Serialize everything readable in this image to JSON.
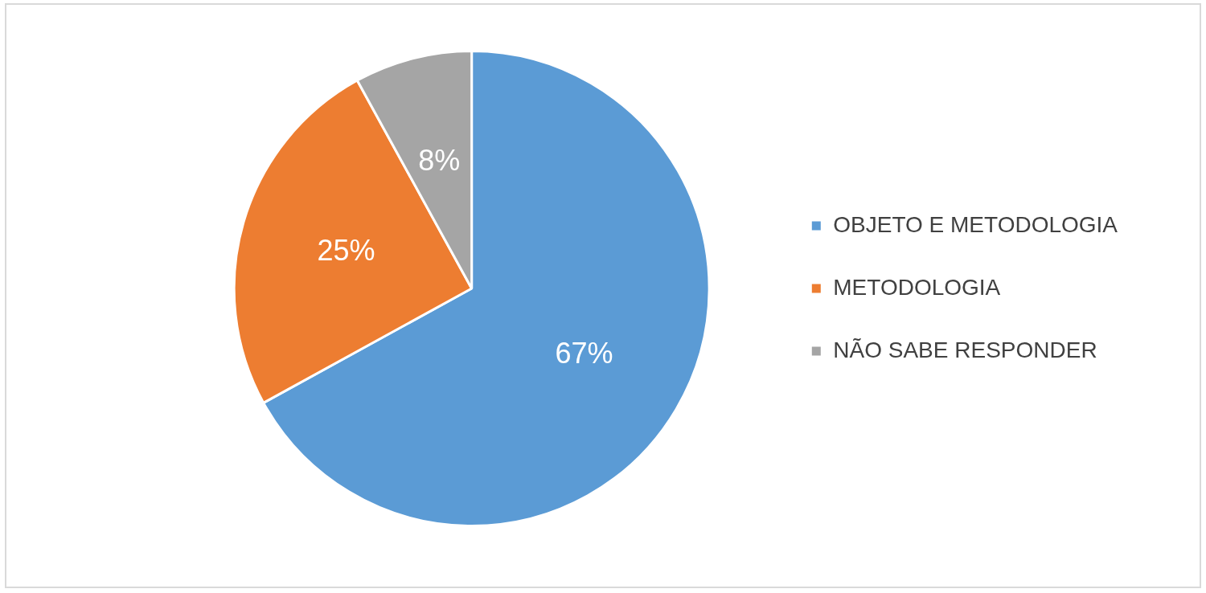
{
  "chart_data": {
    "type": "pie",
    "categories": [
      "OBJETO E METODOLOGIA",
      "METODOLOGIA",
      "NÃO SABE RESPONDER"
    ],
    "values": [
      67,
      25,
      8
    ],
    "colors": [
      "#5b9bd5",
      "#ed7d31",
      "#a5a5a5"
    ],
    "value_labels": [
      "67%",
      "25%",
      "8%"
    ],
    "legend": "right"
  }
}
